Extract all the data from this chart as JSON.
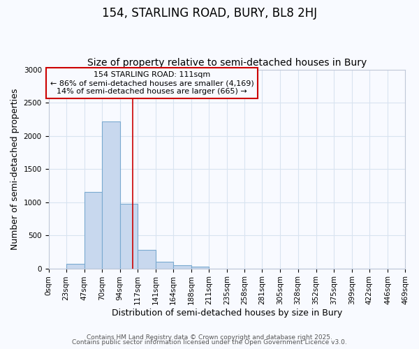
{
  "title": "154, STARLING ROAD, BURY, BL8 2HJ",
  "subtitle": "Size of property relative to semi-detached houses in Bury",
  "xlabel": "Distribution of semi-detached houses by size in Bury",
  "ylabel": "Number of semi-detached properties",
  "bar_edges": [
    0,
    23,
    47,
    70,
    94,
    117,
    141,
    164,
    188,
    211,
    235,
    258,
    281,
    305,
    328,
    352,
    375,
    399,
    422,
    446,
    469
  ],
  "bar_heights": [
    0,
    65,
    1150,
    2220,
    975,
    280,
    105,
    50,
    25,
    0,
    0,
    0,
    0,
    0,
    0,
    0,
    0,
    0,
    0,
    0
  ],
  "bar_color": "#c8d8ee",
  "bar_edge_color": "#7aaad0",
  "bar_linewidth": 0.8,
  "property_value": 111,
  "red_line_color": "#cc0000",
  "annotation_text_line1": "154 STARLING ROAD: 111sqm",
  "annotation_text_line2": "← 86% of semi-detached houses are smaller (4,169)",
  "annotation_text_line3": "14% of semi-detached houses are larger (665) →",
  "annotation_box_color": "#cc0000",
  "ylim": [
    0,
    3000
  ],
  "yticks": [
    0,
    500,
    1000,
    1500,
    2000,
    2500,
    3000
  ],
  "tick_labels": [
    "0sqm",
    "23sqm",
    "47sqm",
    "70sqm",
    "94sqm",
    "117sqm",
    "141sqm",
    "164sqm",
    "188sqm",
    "211sqm",
    "235sqm",
    "258sqm",
    "281sqm",
    "305sqm",
    "328sqm",
    "352sqm",
    "375sqm",
    "399sqm",
    "422sqm",
    "446sqm",
    "469sqm"
  ],
  "grid_color": "#d8e4f0",
  "background_color": "#f8faff",
  "footer_line1": "Contains HM Land Registry data © Crown copyright and database right 2025.",
  "footer_line2": "Contains public sector information licensed under the Open Government Licence v3.0.",
  "title_fontsize": 12,
  "subtitle_fontsize": 10,
  "axis_label_fontsize": 9,
  "tick_fontsize": 7.5,
  "annotation_fontsize": 8,
  "footer_fontsize": 6.5
}
